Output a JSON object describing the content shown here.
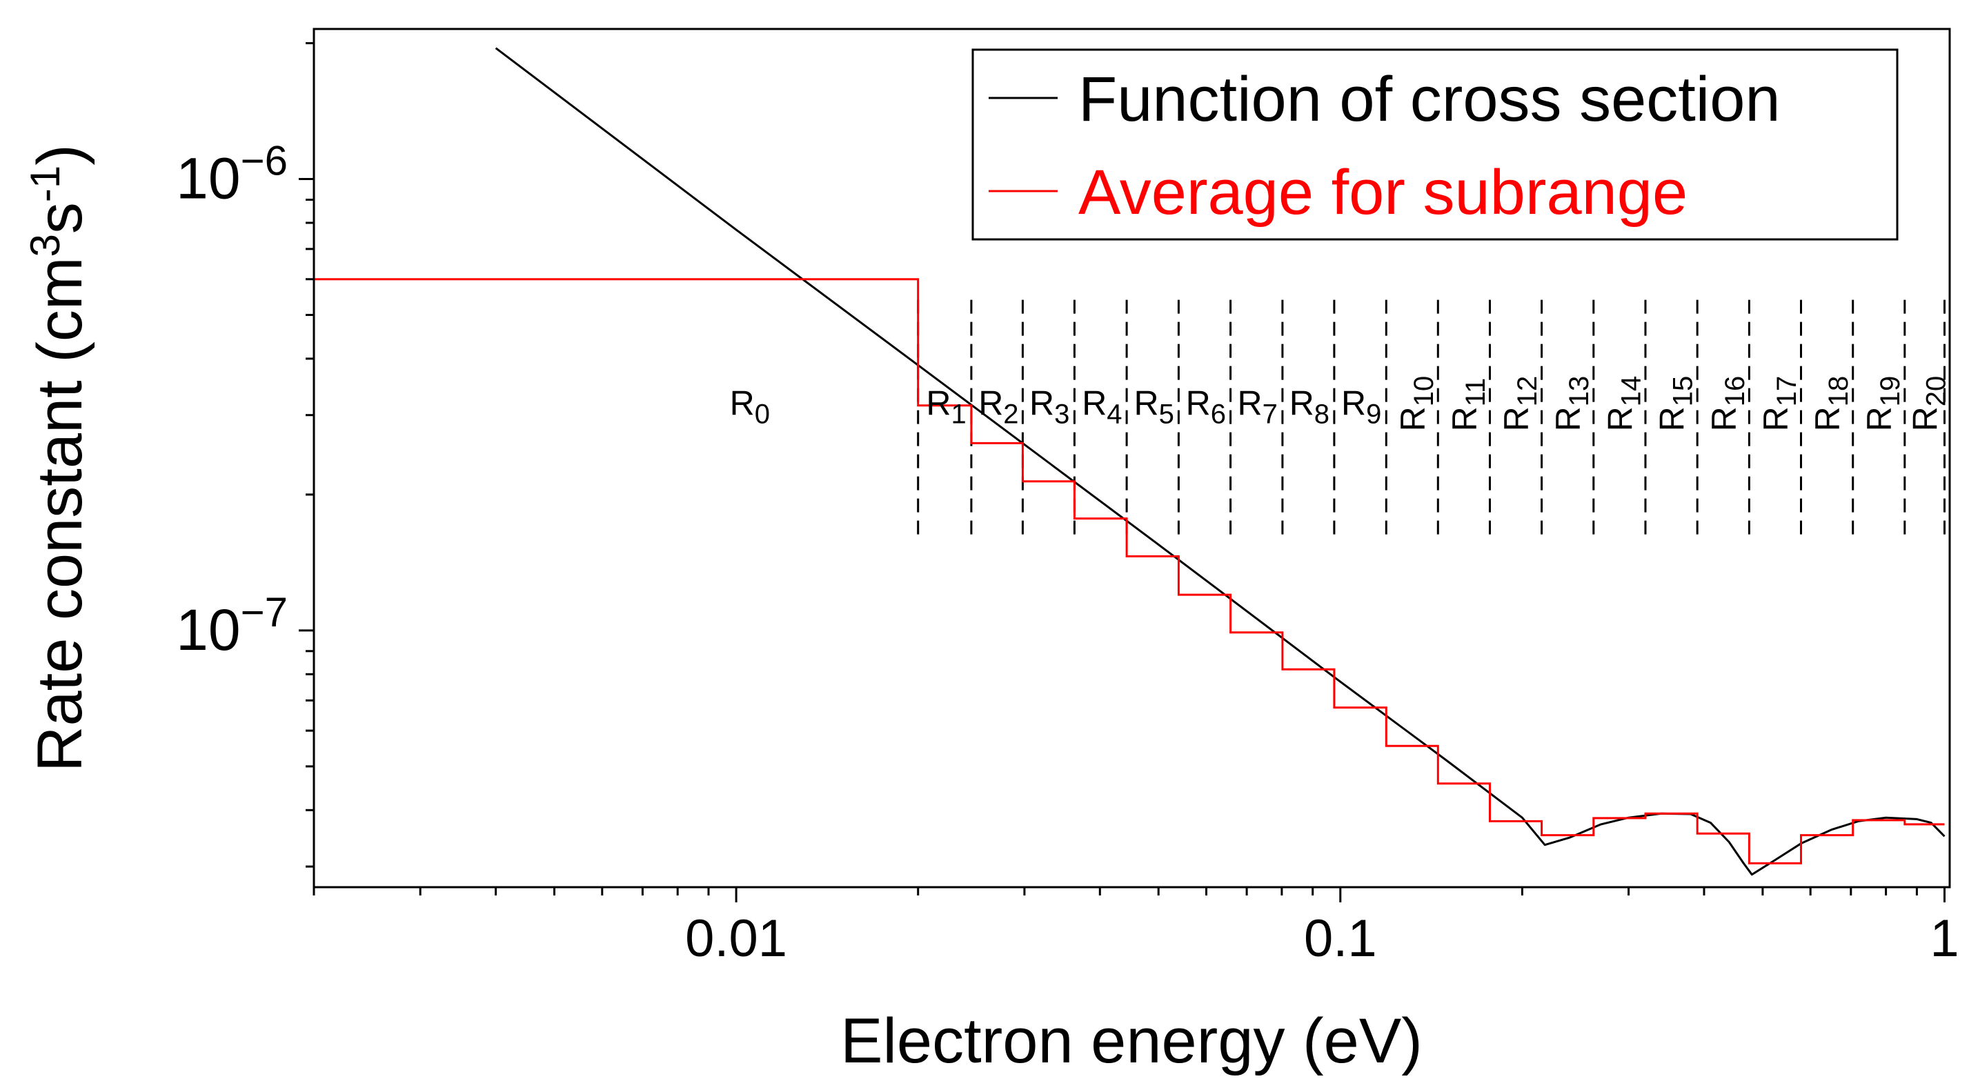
{
  "chart_data": {
    "type": "line",
    "xscale": "log",
    "yscale": "log",
    "xlim": [
      0.002,
      1.02
    ],
    "ylim": [
      2.7e-08,
      2.15e-06
    ],
    "xlabel": "Electron energy (eV)",
    "ylabel": {
      "prefix": "Rate constant (cm",
      "sup1": "3",
      "mid": "s",
      "sup2": "-1",
      "suffix": ")"
    },
    "x_ticks": [
      {
        "value": 0.01,
        "label": "0.01"
      },
      {
        "value": 0.1,
        "label": "0.1"
      },
      {
        "value": 1,
        "label": "1"
      }
    ],
    "y_ticks": [
      {
        "value": 1e-06,
        "base": "10",
        "exp": "−6"
      },
      {
        "value": 1e-07,
        "base": "10",
        "exp": "−7"
      }
    ],
    "legend": {
      "position": "top-right",
      "entries": [
        {
          "label": "Function of cross section",
          "color": "#000000"
        },
        {
          "label": "Average for subrange",
          "color": "#ff0000"
        }
      ]
    },
    "series": [
      {
        "name": "Function of cross section",
        "color": "#000000",
        "points": [
          [
            0.004,
            1.95e-06
          ],
          [
            0.01,
            7.72e-07
          ],
          [
            0.02,
            3.87e-07
          ],
          [
            0.05,
            1.55e-07
          ],
          [
            0.1,
            7.7e-08
          ],
          [
            0.15,
            5.15e-08
          ],
          [
            0.2,
            3.85e-08
          ],
          [
            0.218,
            3.35e-08
          ],
          [
            0.24,
            3.48e-08
          ],
          [
            0.27,
            3.72e-08
          ],
          [
            0.3,
            3.85e-08
          ],
          [
            0.34,
            3.93e-08
          ],
          [
            0.38,
            3.92e-08
          ],
          [
            0.41,
            3.75e-08
          ],
          [
            0.44,
            3.4e-08
          ],
          [
            0.465,
            3.05e-08
          ],
          [
            0.48,
            2.88e-08
          ],
          [
            0.52,
            3.08e-08
          ],
          [
            0.58,
            3.38e-08
          ],
          [
            0.65,
            3.62e-08
          ],
          [
            0.72,
            3.78e-08
          ],
          [
            0.8,
            3.85e-08
          ],
          [
            0.9,
            3.82e-08
          ],
          [
            0.95,
            3.75e-08
          ],
          [
            1.0,
            3.5e-08
          ]
        ]
      },
      {
        "name": "Average for subrange",
        "color": "#ff0000",
        "boundaries": [
          0.002,
          0.02,
          0.0245,
          0.0298,
          0.0363,
          0.0443,
          0.054,
          0.0658,
          0.0802,
          0.0977,
          0.1191,
          0.1451,
          0.1768,
          0.2154,
          0.2625,
          0.3199,
          0.3898,
          0.475,
          0.5788,
          0.7053,
          0.8594,
          1.0
        ],
        "values": [
          6e-07,
          3.15e-07,
          2.6e-07,
          2.14e-07,
          1.77e-07,
          1.46e-07,
          1.2e-07,
          9.9e-08,
          8.2e-08,
          6.75e-08,
          5.55e-08,
          4.58e-08,
          3.78e-08,
          3.52e-08,
          3.84e-08,
          3.93e-08,
          3.55e-08,
          3.05e-08,
          3.52e-08,
          3.8e-08,
          3.72e-08
        ]
      }
    ],
    "subrange_dividers": [
      0.02,
      0.0245,
      0.0298,
      0.0363,
      0.0443,
      0.054,
      0.0658,
      0.0802,
      0.0977,
      0.1191,
      0.1451,
      0.1768,
      0.2154,
      0.2625,
      0.3199,
      0.3898,
      0.475,
      0.5788,
      0.7053,
      0.8594,
      1.0
    ],
    "divider_range": [
      1.6e-07,
      5.4e-07
    ],
    "region_labels": [
      {
        "base": "R",
        "sub": "0",
        "x": 0.0105,
        "y": 3.2e-07,
        "rotated": false
      },
      {
        "base": "R",
        "sub": "1",
        "x": 0.0222,
        "y": 3.2e-07,
        "rotated": false
      },
      {
        "base": "R",
        "sub": "2",
        "x": 0.0271,
        "y": 3.2e-07,
        "rotated": false
      },
      {
        "base": "R",
        "sub": "3",
        "x": 0.0329,
        "y": 3.2e-07,
        "rotated": false
      },
      {
        "base": "R",
        "sub": "4",
        "x": 0.0402,
        "y": 3.2e-07,
        "rotated": false
      },
      {
        "base": "R",
        "sub": "5",
        "x": 0.049,
        "y": 3.2e-07,
        "rotated": false
      },
      {
        "base": "R",
        "sub": "6",
        "x": 0.0597,
        "y": 3.2e-07,
        "rotated": false
      },
      {
        "base": "R",
        "sub": "7",
        "x": 0.0727,
        "y": 3.2e-07,
        "rotated": false
      },
      {
        "base": "R",
        "sub": "8",
        "x": 0.0886,
        "y": 3.2e-07,
        "rotated": false
      },
      {
        "base": "R",
        "sub": "9",
        "x": 0.108,
        "y": 3.2e-07,
        "rotated": false
      },
      {
        "base": "R",
        "sub": "10",
        "x": 0.1315,
        "y": 3.2e-07,
        "rotated": true
      },
      {
        "base": "R",
        "sub": "11",
        "x": 0.1602,
        "y": 3.2e-07,
        "rotated": true
      },
      {
        "base": "R",
        "sub": "12",
        "x": 0.1952,
        "y": 3.2e-07,
        "rotated": true
      },
      {
        "base": "R",
        "sub": "13",
        "x": 0.2378,
        "y": 3.2e-07,
        "rotated": true
      },
      {
        "base": "R",
        "sub": "14",
        "x": 0.2898,
        "y": 3.2e-07,
        "rotated": true
      },
      {
        "base": "R",
        "sub": "15",
        "x": 0.3531,
        "y": 3.2e-07,
        "rotated": true
      },
      {
        "base": "R",
        "sub": "16",
        "x": 0.4303,
        "y": 3.2e-07,
        "rotated": true
      },
      {
        "base": "R",
        "sub": "17",
        "x": 0.5243,
        "y": 3.2e-07,
        "rotated": true
      },
      {
        "base": "R",
        "sub": "18",
        "x": 0.6389,
        "y": 3.2e-07,
        "rotated": true
      },
      {
        "base": "R",
        "sub": "19",
        "x": 0.7785,
        "y": 3.2e-07,
        "rotated": true
      },
      {
        "base": "R",
        "sub": "20",
        "x": 0.9272,
        "y": 3.2e-07,
        "rotated": true
      }
    ]
  }
}
